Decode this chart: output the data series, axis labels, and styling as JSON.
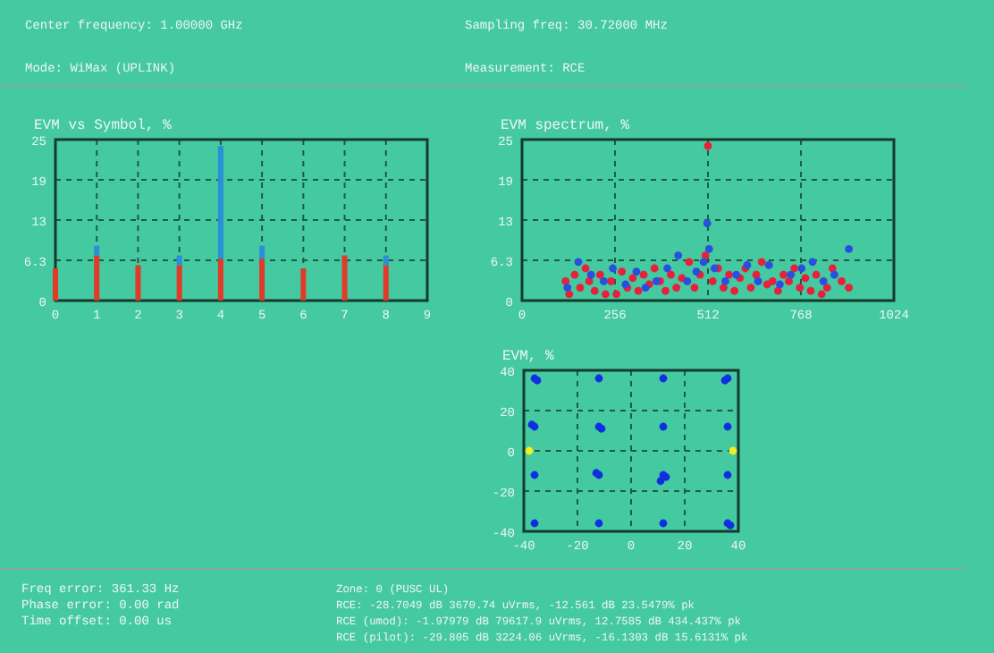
{
  "chart_data": [
    {
      "type": "other",
      "annotations": [
        "Center frequency: 1.00000 GHz",
        "Sampling freq: 30.72000 MHz",
        "Mode: WiMax (UPLINK)",
        "Measurement: RCE"
      ]
    },
    {
      "type": "bar",
      "title": "EVM vs Symbol, %",
      "stacked": true,
      "x": [
        0,
        1,
        2,
        3,
        4,
        5,
        6,
        7,
        8
      ],
      "xlim": [
        0,
        9
      ],
      "xticks": [
        0,
        1,
        2,
        3,
        4,
        5,
        6,
        7,
        8,
        9
      ],
      "ylim": [
        0,
        25
      ],
      "yticks": [
        0,
        {
          "value": 6.25,
          "label": "6.3"
        },
        {
          "value": 12.5,
          "label": "13"
        },
        {
          "value": 18.75,
          "label": "19"
        },
        25
      ],
      "grid": true,
      "series": [
        {
          "color": "#e03a2a",
          "values": [
            5,
            7,
            5.5,
            5.5,
            6.5,
            6.5,
            5,
            7,
            5.5
          ]
        },
        {
          "color": "#2a8fd8",
          "values": [
            null,
            1.5,
            null,
            1.5,
            17.5,
            2,
            null,
            null,
            1.5
          ]
        }
      ]
    },
    {
      "type": "scatter",
      "title": "EVM spectrum, %",
      "xlim": [
        0,
        1024
      ],
      "xticks": [
        0,
        256,
        512,
        768,
        1024
      ],
      "ylim": [
        0,
        25
      ],
      "yticks": [
        0,
        {
          "value": 6.25,
          "label": "6.3"
        },
        {
          "value": 12.5,
          "label": "13"
        },
        {
          "value": 18.75,
          "label": "19"
        },
        25
      ],
      "grid": true,
      "marker": "circle",
      "series": [
        {
          "color": "#e8203a",
          "x": [
            120,
            130,
            145,
            160,
            175,
            185,
            200,
            215,
            230,
            245,
            260,
            275,
            290,
            305,
            320,
            335,
            350,
            365,
            380,
            395,
            410,
            425,
            440,
            460,
            475,
            490,
            505,
            512,
            525,
            540,
            555,
            570,
            585,
            600,
            615,
            630,
            645,
            660,
            675,
            690,
            705,
            720,
            735,
            750,
            765,
            780,
            795,
            810,
            825,
            840,
            855,
            880,
            900
          ],
          "values": [
            3,
            1,
            4,
            2,
            5,
            3,
            1.5,
            4,
            1,
            3,
            1,
            4.5,
            2,
            3.5,
            1.5,
            4,
            2.5,
            5,
            3,
            1.5,
            4,
            2,
            3.5,
            6,
            2,
            4,
            7,
            24,
            3,
            5,
            2,
            4,
            1.5,
            3.5,
            5,
            2,
            4,
            6,
            2.5,
            3,
            1.5,
            4,
            3,
            5,
            2,
            3.5,
            1.5,
            4,
            1,
            2,
            5,
            3,
            2
          ]
        },
        {
          "color": "#2a4ee0",
          "x": [
            125,
            155,
            190,
            225,
            250,
            285,
            315,
            340,
            370,
            400,
            430,
            455,
            480,
            500,
            510,
            515,
            530,
            560,
            590,
            620,
            650,
            680,
            710,
            740,
            770,
            800,
            830,
            860,
            900
          ],
          "values": [
            2,
            6,
            4,
            3,
            5,
            2.5,
            4.5,
            2,
            3,
            5,
            7,
            3,
            4.5,
            6,
            12,
            8,
            5,
            3,
            4,
            5.5,
            3,
            5.5,
            2.5,
            4,
            5,
            6,
            3,
            4,
            8
          ]
        }
      ]
    },
    {
      "type": "scatter",
      "title": "EVM, %",
      "xlim": [
        -40,
        40
      ],
      "xticks": [
        -40,
        -20,
        0,
        20,
        40
      ],
      "ylim": [
        -40,
        40
      ],
      "yticks": [
        -40,
        -20,
        0,
        20,
        40
      ],
      "grid": true,
      "marker": "circle",
      "series": [
        {
          "color": "#1030e0",
          "x": [
            -36,
            -12,
            12,
            36,
            -36,
            -12,
            12,
            36,
            -36,
            -12,
            12,
            36,
            -36,
            -12,
            12,
            36,
            -35,
            -11,
            13,
            37,
            -37,
            -13,
            11,
            35
          ],
          "values": [
            36,
            36,
            36,
            36,
            12,
            12,
            12,
            12,
            -12,
            -12,
            -12,
            -12,
            -36,
            -36,
            -36,
            -36,
            35,
            11,
            -13,
            -37,
            13,
            -11,
            -15,
            35
          ]
        },
        {
          "color": "#f0f020",
          "x": [
            -38,
            38
          ],
          "values": [
            0,
            0
          ]
        }
      ]
    },
    {
      "type": "other",
      "annotations": [
        "Freq error: 361.33 Hz",
        "Phase error: 0.00 rad",
        "Time offset: 0.00 us",
        "Zone: 0 (PUSC UL)",
        "RCE: -28.7049 dB 3670.74 uVrms, -12.561 dB 23.5479% pk",
        "RCE (umod): -1.97979 dB 79617.9 uVrms, 12.7585 dB 434.437% pk",
        "RCE (pilot): -29.805 dB 3224.06 uVrms, -16.1303 dB 15.6131% pk"
      ]
    }
  ]
}
